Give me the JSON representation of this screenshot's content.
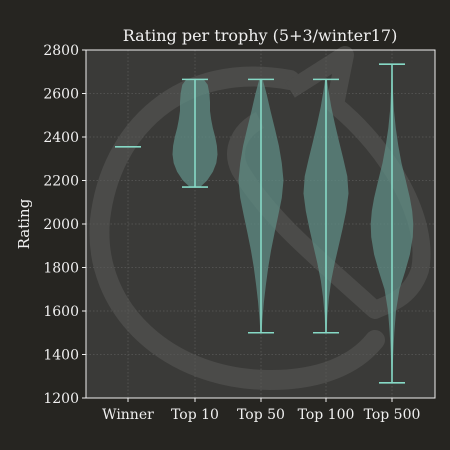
{
  "chart_data": {
    "type": "violin",
    "title": "Rating per trophy (5+3/winter17)",
    "xlabel": "",
    "ylabel": "Rating",
    "ylim": [
      1200,
      2800
    ],
    "yticks": [
      1200,
      1400,
      1600,
      1800,
      2000,
      2200,
      2400,
      2600,
      2800
    ],
    "grid": true,
    "categories": [
      "Winner",
      "Top 10",
      "Top 50",
      "Top 100",
      "Top 500"
    ],
    "series": [
      {
        "category": "Winner",
        "min": 2355,
        "max": 2355,
        "density": []
      },
      {
        "category": "Top 10",
        "min": 2170,
        "max": 2665,
        "density": [
          [
            2170,
            0.18
          ],
          [
            2200,
            0.42
          ],
          [
            2240,
            0.62
          ],
          [
            2280,
            0.74
          ],
          [
            2320,
            0.78
          ],
          [
            2360,
            0.76
          ],
          [
            2400,
            0.7
          ],
          [
            2440,
            0.62
          ],
          [
            2480,
            0.56
          ],
          [
            2520,
            0.52
          ],
          [
            2560,
            0.52
          ],
          [
            2600,
            0.5
          ],
          [
            2640,
            0.44
          ],
          [
            2665,
            0.3
          ]
        ]
      },
      {
        "category": "Top 50",
        "min": 1500,
        "max": 2665,
        "density": [
          [
            1500,
            0.02
          ],
          [
            1560,
            0.05
          ],
          [
            1640,
            0.1
          ],
          [
            1720,
            0.17
          ],
          [
            1800,
            0.25
          ],
          [
            1880,
            0.35
          ],
          [
            1960,
            0.47
          ],
          [
            2040,
            0.6
          ],
          [
            2120,
            0.72
          ],
          [
            2200,
            0.78
          ],
          [
            2280,
            0.72
          ],
          [
            2360,
            0.62
          ],
          [
            2440,
            0.48
          ],
          [
            2520,
            0.33
          ],
          [
            2600,
            0.19
          ],
          [
            2665,
            0.06
          ]
        ]
      },
      {
        "category": "Top 100",
        "min": 1500,
        "max": 2665,
        "density": [
          [
            1500,
            0.02
          ],
          [
            1580,
            0.05
          ],
          [
            1660,
            0.1
          ],
          [
            1740,
            0.18
          ],
          [
            1820,
            0.3
          ],
          [
            1900,
            0.44
          ],
          [
            1980,
            0.58
          ],
          [
            2060,
            0.7
          ],
          [
            2140,
            0.78
          ],
          [
            2220,
            0.74
          ],
          [
            2300,
            0.6
          ],
          [
            2380,
            0.45
          ],
          [
            2460,
            0.31
          ],
          [
            2540,
            0.18
          ],
          [
            2620,
            0.08
          ],
          [
            2665,
            0.03
          ]
        ]
      },
      {
        "category": "Top 500",
        "min": 1270,
        "max": 2735,
        "density": [
          [
            1270,
            0.01
          ],
          [
            1400,
            0.04
          ],
          [
            1500,
            0.08
          ],
          [
            1600,
            0.14
          ],
          [
            1700,
            0.26
          ],
          [
            1780,
            0.45
          ],
          [
            1860,
            0.62
          ],
          [
            1940,
            0.72
          ],
          [
            2000,
            0.74
          ],
          [
            2060,
            0.7
          ],
          [
            2120,
            0.62
          ],
          [
            2200,
            0.48
          ],
          [
            2280,
            0.33
          ],
          [
            2360,
            0.22
          ],
          [
            2440,
            0.13
          ],
          [
            2520,
            0.07
          ],
          [
            2620,
            0.03
          ],
          [
            2735,
            0.01
          ]
        ]
      }
    ],
    "colors": {
      "background": "#262521",
      "plot_background": "#3a3a38",
      "violin_fill": "#5f8c84",
      "line": "#86d9c6",
      "text": "#f0f0f0",
      "grid": "#5a5a58",
      "watermark": "#4a4a48"
    }
  }
}
